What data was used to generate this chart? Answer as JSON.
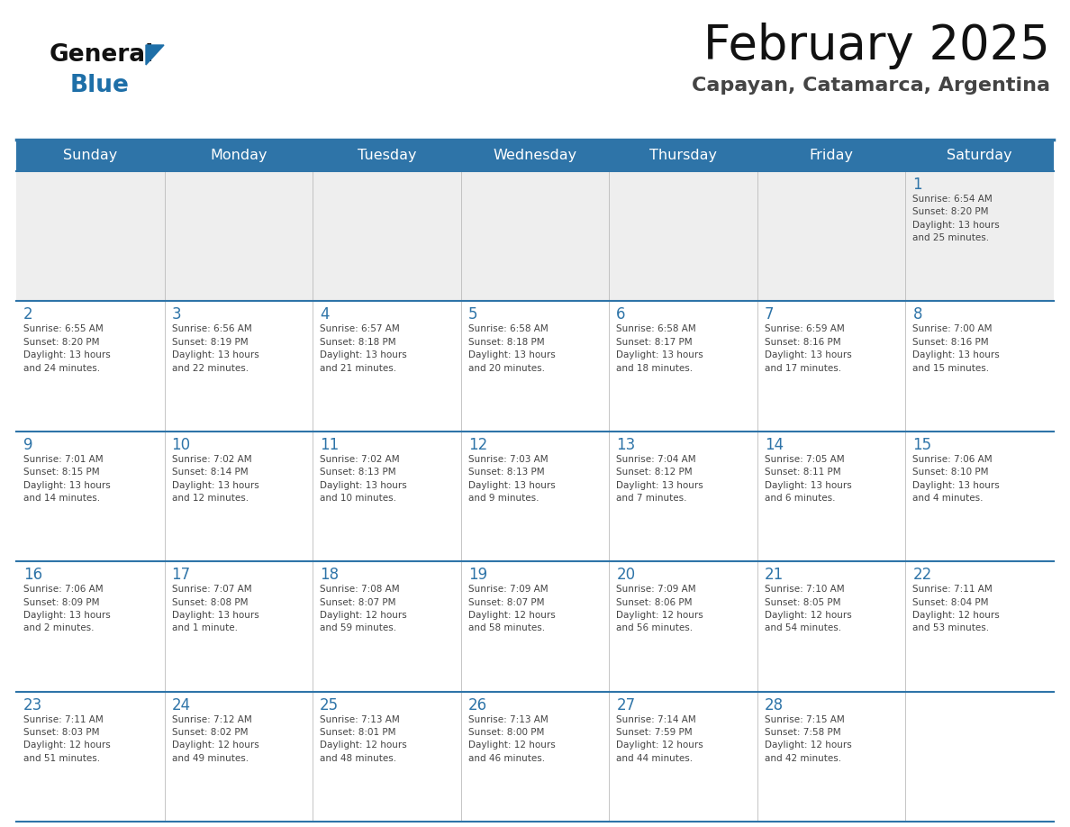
{
  "title": "February 2025",
  "subtitle": "Capayan, Catamarca, Argentina",
  "header_bg": "#2E74A8",
  "header_text_color": "#FFFFFF",
  "day_names": [
    "Sunday",
    "Monday",
    "Tuesday",
    "Wednesday",
    "Thursday",
    "Friday",
    "Saturday"
  ],
  "bg_color": "#FFFFFF",
  "cell_bg_week1": "#EEEEEE",
  "title_color": "#111111",
  "subtitle_color": "#444444",
  "day_number_color": "#2E74A8",
  "cell_text_color": "#444444",
  "logo_general_color": "#111111",
  "logo_blue_color": "#1E6FA8",
  "line_color": "#2E74A8",
  "weeks": [
    {
      "days": [
        {
          "date": null,
          "info": null
        },
        {
          "date": null,
          "info": null
        },
        {
          "date": null,
          "info": null
        },
        {
          "date": null,
          "info": null
        },
        {
          "date": null,
          "info": null
        },
        {
          "date": null,
          "info": null
        },
        {
          "date": 1,
          "info": "Sunrise: 6:54 AM\nSunset: 8:20 PM\nDaylight: 13 hours\nand 25 minutes."
        }
      ]
    },
    {
      "days": [
        {
          "date": 2,
          "info": "Sunrise: 6:55 AM\nSunset: 8:20 PM\nDaylight: 13 hours\nand 24 minutes."
        },
        {
          "date": 3,
          "info": "Sunrise: 6:56 AM\nSunset: 8:19 PM\nDaylight: 13 hours\nand 22 minutes."
        },
        {
          "date": 4,
          "info": "Sunrise: 6:57 AM\nSunset: 8:18 PM\nDaylight: 13 hours\nand 21 minutes."
        },
        {
          "date": 5,
          "info": "Sunrise: 6:58 AM\nSunset: 8:18 PM\nDaylight: 13 hours\nand 20 minutes."
        },
        {
          "date": 6,
          "info": "Sunrise: 6:58 AM\nSunset: 8:17 PM\nDaylight: 13 hours\nand 18 minutes."
        },
        {
          "date": 7,
          "info": "Sunrise: 6:59 AM\nSunset: 8:16 PM\nDaylight: 13 hours\nand 17 minutes."
        },
        {
          "date": 8,
          "info": "Sunrise: 7:00 AM\nSunset: 8:16 PM\nDaylight: 13 hours\nand 15 minutes."
        }
      ]
    },
    {
      "days": [
        {
          "date": 9,
          "info": "Sunrise: 7:01 AM\nSunset: 8:15 PM\nDaylight: 13 hours\nand 14 minutes."
        },
        {
          "date": 10,
          "info": "Sunrise: 7:02 AM\nSunset: 8:14 PM\nDaylight: 13 hours\nand 12 minutes."
        },
        {
          "date": 11,
          "info": "Sunrise: 7:02 AM\nSunset: 8:13 PM\nDaylight: 13 hours\nand 10 minutes."
        },
        {
          "date": 12,
          "info": "Sunrise: 7:03 AM\nSunset: 8:13 PM\nDaylight: 13 hours\nand 9 minutes."
        },
        {
          "date": 13,
          "info": "Sunrise: 7:04 AM\nSunset: 8:12 PM\nDaylight: 13 hours\nand 7 minutes."
        },
        {
          "date": 14,
          "info": "Sunrise: 7:05 AM\nSunset: 8:11 PM\nDaylight: 13 hours\nand 6 minutes."
        },
        {
          "date": 15,
          "info": "Sunrise: 7:06 AM\nSunset: 8:10 PM\nDaylight: 13 hours\nand 4 minutes."
        }
      ]
    },
    {
      "days": [
        {
          "date": 16,
          "info": "Sunrise: 7:06 AM\nSunset: 8:09 PM\nDaylight: 13 hours\nand 2 minutes."
        },
        {
          "date": 17,
          "info": "Sunrise: 7:07 AM\nSunset: 8:08 PM\nDaylight: 13 hours\nand 1 minute."
        },
        {
          "date": 18,
          "info": "Sunrise: 7:08 AM\nSunset: 8:07 PM\nDaylight: 12 hours\nand 59 minutes."
        },
        {
          "date": 19,
          "info": "Sunrise: 7:09 AM\nSunset: 8:07 PM\nDaylight: 12 hours\nand 58 minutes."
        },
        {
          "date": 20,
          "info": "Sunrise: 7:09 AM\nSunset: 8:06 PM\nDaylight: 12 hours\nand 56 minutes."
        },
        {
          "date": 21,
          "info": "Sunrise: 7:10 AM\nSunset: 8:05 PM\nDaylight: 12 hours\nand 54 minutes."
        },
        {
          "date": 22,
          "info": "Sunrise: 7:11 AM\nSunset: 8:04 PM\nDaylight: 12 hours\nand 53 minutes."
        }
      ]
    },
    {
      "days": [
        {
          "date": 23,
          "info": "Sunrise: 7:11 AM\nSunset: 8:03 PM\nDaylight: 12 hours\nand 51 minutes."
        },
        {
          "date": 24,
          "info": "Sunrise: 7:12 AM\nSunset: 8:02 PM\nDaylight: 12 hours\nand 49 minutes."
        },
        {
          "date": 25,
          "info": "Sunrise: 7:13 AM\nSunset: 8:01 PM\nDaylight: 12 hours\nand 48 minutes."
        },
        {
          "date": 26,
          "info": "Sunrise: 7:13 AM\nSunset: 8:00 PM\nDaylight: 12 hours\nand 46 minutes."
        },
        {
          "date": 27,
          "info": "Sunrise: 7:14 AM\nSunset: 7:59 PM\nDaylight: 12 hours\nand 44 minutes."
        },
        {
          "date": 28,
          "info": "Sunrise: 7:15 AM\nSunset: 7:58 PM\nDaylight: 12 hours\nand 42 minutes."
        },
        {
          "date": null,
          "info": null
        }
      ]
    }
  ]
}
